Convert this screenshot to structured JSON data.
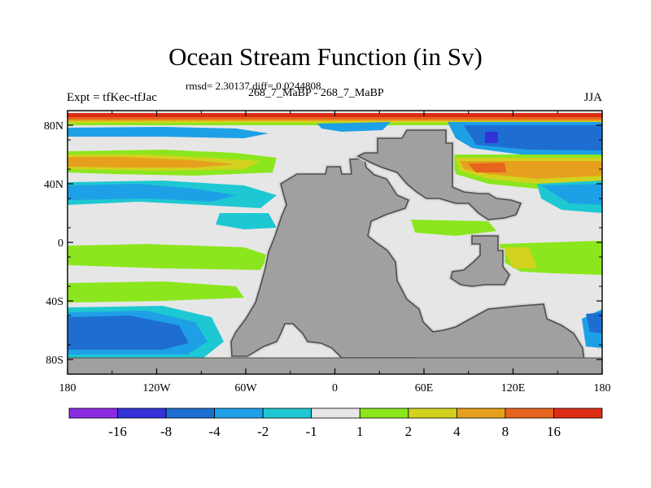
{
  "title": "Ocean Stream Function (in Sv)",
  "stats": "rmsd= 2.30137 diff= 0.0244808",
  "experiment": "Expt = tfKec-tfJac",
  "case_label": "268_7_MaBP - 268_7_MaBP",
  "season": "JJA",
  "y_ticks": [
    {
      "label": "80N",
      "lat": 80
    },
    {
      "label": "40N",
      "lat": 40
    },
    {
      "label": "0",
      "lat": 0
    },
    {
      "label": "40S",
      "lat": -40
    },
    {
      "label": "80S",
      "lat": -80
    }
  ],
  "x_ticks": [
    {
      "label": "180",
      "lon": -180
    },
    {
      "label": "120W",
      "lon": -120
    },
    {
      "label": "60W",
      "lon": -60
    },
    {
      "label": "0",
      "lon": 0
    },
    {
      "label": "60E",
      "lon": 60
    },
    {
      "label": "120E",
      "lon": 120
    },
    {
      "label": "180",
      "lon": 180
    }
  ],
  "colorbar": {
    "colors": [
      "#8a2be2",
      "#3232d8",
      "#1e6ed2",
      "#1ea0e6",
      "#1ec8d2",
      "#e6e6e6",
      "#8ce61e",
      "#d2d21e",
      "#e6a01e",
      "#e6641e",
      "#dc2d14"
    ],
    "labels": [
      "-16",
      "-8",
      "-4",
      "-2",
      "-1",
      "1",
      "2",
      "4",
      "8",
      "16"
    ]
  },
  "colors": {
    "land": "#a0a0a0",
    "coast": "#4d4d4d",
    "coast_halo": "#d2d2d2",
    "background": "#e6e6e6"
  }
}
